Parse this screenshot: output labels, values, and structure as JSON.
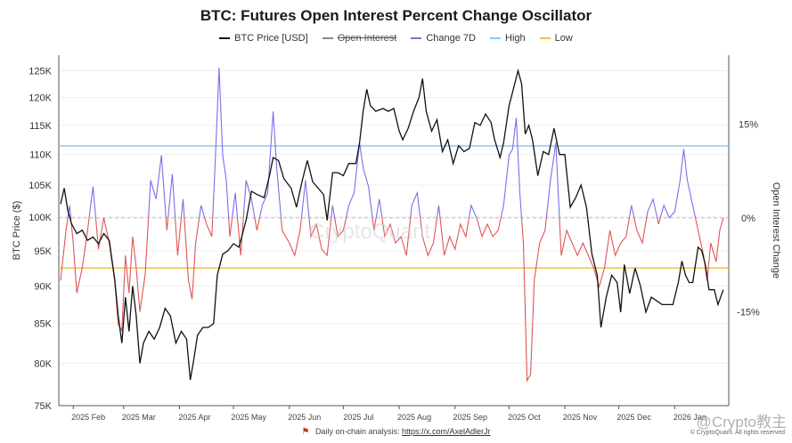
{
  "chart_data": {
    "type": "line",
    "title": "BTC: Futures Open Interest Percent Change Oscillator",
    "legend": [
      {
        "name": "BTC Price [USD]",
        "color": "#111111",
        "struck": false
      },
      {
        "name": "Open Interest",
        "color": "#888888",
        "struck": true
      },
      {
        "name": "Change 7D",
        "color": "#7b6ee8",
        "struck": false
      },
      {
        "name": "High",
        "color": "#8ec9ef",
        "struck": false
      },
      {
        "name": "Low",
        "color": "#f0c24a",
        "struck": false
      }
    ],
    "left_axis": {
      "label": "BTC Price ($)",
      "ticks": [
        "125K",
        "120K",
        "115K",
        "110K",
        "105K",
        "100K",
        "95K",
        "90K",
        "85K",
        "80K",
        "75K"
      ],
      "scale": "log",
      "range": [
        75000,
        128000
      ]
    },
    "right_axis": {
      "label": "Open Interest Change",
      "ticks": [
        "15%",
        "0%",
        "-15%"
      ],
      "range": [
        -30,
        26
      ]
    },
    "x_axis": {
      "ticks": [
        "2025 Feb",
        "2025 Mar",
        "2025 Apr",
        "2025 May",
        "2025 Jun",
        "2025 Jul",
        "2025 Aug",
        "2025 Sep",
        "2025 Oct",
        "2025 Nov",
        "2025 Dec",
        "2026 Jan"
      ]
    },
    "high_level": 11.5,
    "low_level": -8,
    "zero_level": 0,
    "price_series": {
      "name": "BTC Price [USD]",
      "points": [
        [
          "2025-01-25",
          102000
        ],
        [
          "2025-01-27",
          104500
        ],
        [
          "2025-01-29",
          101000
        ],
        [
          "2025-01-31",
          99000
        ],
        [
          "2025-02-03",
          97500
        ],
        [
          "2025-02-06",
          98000
        ],
        [
          "2025-02-09",
          96500
        ],
        [
          "2025-02-12",
          97000
        ],
        [
          "2025-02-15",
          96000
        ],
        [
          "2025-02-18",
          97500
        ],
        [
          "2025-02-21",
          96500
        ],
        [
          "2025-02-24",
          91000
        ],
        [
          "2025-02-26",
          86000
        ],
        [
          "2025-02-28",
          82500
        ],
        [
          "2025-03-02",
          88500
        ],
        [
          "2025-03-04",
          84000
        ],
        [
          "2025-03-06",
          90000
        ],
        [
          "2025-03-08",
          86000
        ],
        [
          "2025-03-10",
          80000
        ],
        [
          "2025-03-12",
          82500
        ],
        [
          "2025-03-15",
          84000
        ],
        [
          "2025-03-18",
          83000
        ],
        [
          "2025-03-21",
          84500
        ],
        [
          "2025-03-24",
          87000
        ],
        [
          "2025-03-27",
          86000
        ],
        [
          "2025-03-30",
          82500
        ],
        [
          "2025-04-02",
          84000
        ],
        [
          "2025-04-05",
          83000
        ],
        [
          "2025-04-07",
          78000
        ],
        [
          "2025-04-09",
          80500
        ],
        [
          "2025-04-11",
          83500
        ],
        [
          "2025-04-14",
          84500
        ],
        [
          "2025-04-17",
          84500
        ],
        [
          "2025-04-20",
          85000
        ],
        [
          "2025-04-22",
          91500
        ],
        [
          "2025-04-25",
          94500
        ],
        [
          "2025-04-28",
          95000
        ],
        [
          "2025-05-01",
          96000
        ],
        [
          "2025-05-04",
          95500
        ],
        [
          "2025-05-08",
          99500
        ],
        [
          "2025-05-11",
          104000
        ],
        [
          "2025-05-14",
          103500
        ],
        [
          "2025-05-18",
          103000
        ],
        [
          "2025-05-21",
          106500
        ],
        [
          "2025-05-23",
          109500
        ],
        [
          "2025-05-26",
          109000
        ],
        [
          "2025-05-29",
          106000
        ],
        [
          "2025-06-02",
          104500
        ],
        [
          "2025-06-05",
          101500
        ],
        [
          "2025-06-08",
          105500
        ],
        [
          "2025-06-11",
          109000
        ],
        [
          "2025-06-14",
          105500
        ],
        [
          "2025-06-17",
          104500
        ],
        [
          "2025-06-20",
          103500
        ],
        [
          "2025-06-22",
          99500
        ],
        [
          "2025-06-25",
          107000
        ],
        [
          "2025-06-28",
          107000
        ],
        [
          "2025-07-01",
          106500
        ],
        [
          "2025-07-04",
          108500
        ],
        [
          "2025-07-08",
          108500
        ],
        [
          "2025-07-10",
          112000
        ],
        [
          "2025-07-12",
          117500
        ],
        [
          "2025-07-14",
          121500
        ],
        [
          "2025-07-16",
          118500
        ],
        [
          "2025-07-19",
          117500
        ],
        [
          "2025-07-23",
          118000
        ],
        [
          "2025-07-26",
          117500
        ],
        [
          "2025-07-29",
          118000
        ],
        [
          "2025-08-01",
          114000
        ],
        [
          "2025-08-03",
          112500
        ],
        [
          "2025-08-06",
          114500
        ],
        [
          "2025-08-09",
          117500
        ],
        [
          "2025-08-12",
          120000
        ],
        [
          "2025-08-14",
          123500
        ],
        [
          "2025-08-16",
          117500
        ],
        [
          "2025-08-19",
          114000
        ],
        [
          "2025-08-22",
          116000
        ],
        [
          "2025-08-25",
          110500
        ],
        [
          "2025-08-28",
          112500
        ],
        [
          "2025-08-31",
          108500
        ],
        [
          "2025-09-03",
          111500
        ],
        [
          "2025-09-06",
          110500
        ],
        [
          "2025-09-09",
          111000
        ],
        [
          "2025-09-12",
          115500
        ],
        [
          "2025-09-15",
          115000
        ],
        [
          "2025-09-18",
          117000
        ],
        [
          "2025-09-21",
          115500
        ],
        [
          "2025-09-23",
          112500
        ],
        [
          "2025-09-26",
          109500
        ],
        [
          "2025-09-28",
          112000
        ],
        [
          "2025-10-01",
          118500
        ],
        [
          "2025-10-03",
          121000
        ],
        [
          "2025-10-06",
          125000
        ],
        [
          "2025-10-08",
          122500
        ],
        [
          "2025-10-10",
          113500
        ],
        [
          "2025-10-12",
          115000
        ],
        [
          "2025-10-14",
          112500
        ],
        [
          "2025-10-17",
          106500
        ],
        [
          "2025-10-20",
          110500
        ],
        [
          "2025-10-23",
          110000
        ],
        [
          "2025-10-26",
          114500
        ],
        [
          "2025-10-29",
          110000
        ],
        [
          "2025-11-01",
          110000
        ],
        [
          "2025-11-04",
          101500
        ],
        [
          "2025-11-07",
          103000
        ],
        [
          "2025-11-10",
          105000
        ],
        [
          "2025-11-13",
          101500
        ],
        [
          "2025-11-16",
          94500
        ],
        [
          "2025-11-19",
          91500
        ],
        [
          "2025-11-21",
          84500
        ],
        [
          "2025-11-24",
          88500
        ],
        [
          "2025-11-27",
          91500
        ],
        [
          "2025-11-30",
          90500
        ],
        [
          "2025-12-02",
          86500
        ],
        [
          "2025-12-04",
          93000
        ],
        [
          "2025-12-07",
          89000
        ],
        [
          "2025-12-10",
          92500
        ],
        [
          "2025-12-13",
          90000
        ],
        [
          "2025-12-16",
          86500
        ],
        [
          "2025-12-19",
          88500
        ],
        [
          "2025-12-22",
          88000
        ],
        [
          "2025-12-25",
          87500
        ],
        [
          "2025-12-28",
          87500
        ],
        [
          "2025-12-31",
          87500
        ],
        [
          "2026-01-03",
          90500
        ],
        [
          "2026-01-05",
          93500
        ],
        [
          "2026-01-07",
          91500
        ],
        [
          "2026-01-09",
          90500
        ],
        [
          "2026-01-11",
          90500
        ],
        [
          "2026-01-14",
          95500
        ],
        [
          "2026-01-16",
          95000
        ],
        [
          "2026-01-18",
          93000
        ],
        [
          "2026-01-20",
          89500
        ],
        [
          "2026-01-23",
          89500
        ],
        [
          "2026-01-25",
          87500
        ],
        [
          "2026-01-28",
          89500
        ]
      ]
    },
    "change_7d_series": {
      "name": "Change 7D",
      "points": [
        [
          "2025-01-25",
          -10
        ],
        [
          "2025-01-28",
          -2
        ],
        [
          "2025-01-30",
          2
        ],
        [
          "2025-02-01",
          -4
        ],
        [
          "2025-02-03",
          -12
        ],
        [
          "2025-02-06",
          -8
        ],
        [
          "2025-02-09",
          -2
        ],
        [
          "2025-02-12",
          5
        ],
        [
          "2025-02-15",
          -5
        ],
        [
          "2025-02-18",
          0
        ],
        [
          "2025-02-21",
          -4
        ],
        [
          "2025-02-24",
          -10
        ],
        [
          "2025-02-26",
          -17
        ],
        [
          "2025-02-28",
          -18
        ],
        [
          "2025-03-02",
          -6
        ],
        [
          "2025-03-04",
          -12
        ],
        [
          "2025-03-06",
          -3
        ],
        [
          "2025-03-08",
          -8
        ],
        [
          "2025-03-10",
          -15
        ],
        [
          "2025-03-13",
          -9
        ],
        [
          "2025-03-16",
          6
        ],
        [
          "2025-03-19",
          3
        ],
        [
          "2025-03-22",
          10
        ],
        [
          "2025-03-25",
          -2
        ],
        [
          "2025-03-28",
          7
        ],
        [
          "2025-03-31",
          -6
        ],
        [
          "2025-04-03",
          3
        ],
        [
          "2025-04-06",
          -10
        ],
        [
          "2025-04-08",
          -13
        ],
        [
          "2025-04-10",
          -4
        ],
        [
          "2025-04-13",
          2
        ],
        [
          "2025-04-16",
          -1
        ],
        [
          "2025-04-19",
          -3
        ],
        [
          "2025-04-21",
          10
        ],
        [
          "2025-04-23",
          24
        ],
        [
          "2025-04-25",
          10
        ],
        [
          "2025-04-27",
          6
        ],
        [
          "2025-04-29",
          -3
        ],
        [
          "2025-05-02",
          4
        ],
        [
          "2025-05-05",
          -6
        ],
        [
          "2025-05-08",
          6
        ],
        [
          "2025-05-11",
          3
        ],
        [
          "2025-05-14",
          -2
        ],
        [
          "2025-05-17",
          2
        ],
        [
          "2025-05-20",
          4
        ],
        [
          "2025-05-23",
          17
        ],
        [
          "2025-05-25",
          8
        ],
        [
          "2025-05-28",
          -2
        ],
        [
          "2025-06-01",
          -4
        ],
        [
          "2025-06-04",
          -6
        ],
        [
          "2025-06-07",
          -2
        ],
        [
          "2025-06-10",
          6
        ],
        [
          "2025-06-13",
          -3
        ],
        [
          "2025-06-16",
          -1
        ],
        [
          "2025-06-19",
          -5
        ],
        [
          "2025-06-22",
          -6
        ],
        [
          "2025-06-25",
          2
        ],
        [
          "2025-06-28",
          -3
        ],
        [
          "2025-07-01",
          -2
        ],
        [
          "2025-07-04",
          2
        ],
        [
          "2025-07-07",
          4
        ],
        [
          "2025-07-10",
          12
        ],
        [
          "2025-07-12",
          8
        ],
        [
          "2025-07-15",
          5
        ],
        [
          "2025-07-18",
          -2
        ],
        [
          "2025-07-21",
          3
        ],
        [
          "2025-07-24",
          -3
        ],
        [
          "2025-07-27",
          -1
        ],
        [
          "2025-07-30",
          -4
        ],
        [
          "2025-08-02",
          -3
        ],
        [
          "2025-08-05",
          -6
        ],
        [
          "2025-08-08",
          2
        ],
        [
          "2025-08-11",
          4
        ],
        [
          "2025-08-14",
          -3
        ],
        [
          "2025-08-17",
          -6
        ],
        [
          "2025-08-20",
          -4
        ],
        [
          "2025-08-23",
          2
        ],
        [
          "2025-08-26",
          -6
        ],
        [
          "2025-08-29",
          -3
        ],
        [
          "2025-09-01",
          -5
        ],
        [
          "2025-09-04",
          -1
        ],
        [
          "2025-09-07",
          -3
        ],
        [
          "2025-09-10",
          2
        ],
        [
          "2025-09-13",
          0
        ],
        [
          "2025-09-16",
          -3
        ],
        [
          "2025-09-19",
          -1
        ],
        [
          "2025-09-22",
          -3
        ],
        [
          "2025-09-25",
          -2
        ],
        [
          "2025-09-28",
          2
        ],
        [
          "2025-10-01",
          10
        ],
        [
          "2025-10-03",
          11
        ],
        [
          "2025-10-05",
          16
        ],
        [
          "2025-10-07",
          4
        ],
        [
          "2025-10-09",
          -4
        ],
        [
          "2025-10-11",
          -26
        ],
        [
          "2025-10-13",
          -25
        ],
        [
          "2025-10-15",
          -10
        ],
        [
          "2025-10-18",
          -4
        ],
        [
          "2025-10-21",
          -2
        ],
        [
          "2025-10-24",
          6
        ],
        [
          "2025-10-27",
          12
        ],
        [
          "2025-10-30",
          -6
        ],
        [
          "2025-11-02",
          -2
        ],
        [
          "2025-11-05",
          -4
        ],
        [
          "2025-11-08",
          -6
        ],
        [
          "2025-11-11",
          -4
        ],
        [
          "2025-11-14",
          -6
        ],
        [
          "2025-11-17",
          -8
        ],
        [
          "2025-11-20",
          -11
        ],
        [
          "2025-11-23",
          -8
        ],
        [
          "2025-11-26",
          -2
        ],
        [
          "2025-11-29",
          -6
        ],
        [
          "2025-12-02",
          -4
        ],
        [
          "2025-12-05",
          -3
        ],
        [
          "2025-12-08",
          2
        ],
        [
          "2025-12-11",
          -2
        ],
        [
          "2025-12-14",
          -4
        ],
        [
          "2025-12-17",
          1
        ],
        [
          "2025-12-20",
          3
        ],
        [
          "2025-12-23",
          -1
        ],
        [
          "2025-12-26",
          2
        ],
        [
          "2025-12-29",
          0
        ],
        [
          "2026-01-01",
          1
        ],
        [
          "2026-01-04",
          6
        ],
        [
          "2026-01-06",
          11
        ],
        [
          "2026-01-08",
          6
        ],
        [
          "2026-01-11",
          2
        ],
        [
          "2026-01-14",
          -2
        ],
        [
          "2026-01-17",
          -6
        ],
        [
          "2026-01-19",
          -10
        ],
        [
          "2026-01-21",
          -4
        ],
        [
          "2026-01-24",
          -7
        ],
        [
          "2026-01-26",
          -2
        ],
        [
          "2026-01-28",
          0
        ]
      ]
    }
  },
  "watermark": "CryptoQuant",
  "corner_watermark": "@Crypto教主",
  "footer": {
    "text": "Daily on-chain analysis:",
    "link": "https://x.com/AxelAdlerJr"
  },
  "copyright": "© CryptoQuant. All rights reserved"
}
